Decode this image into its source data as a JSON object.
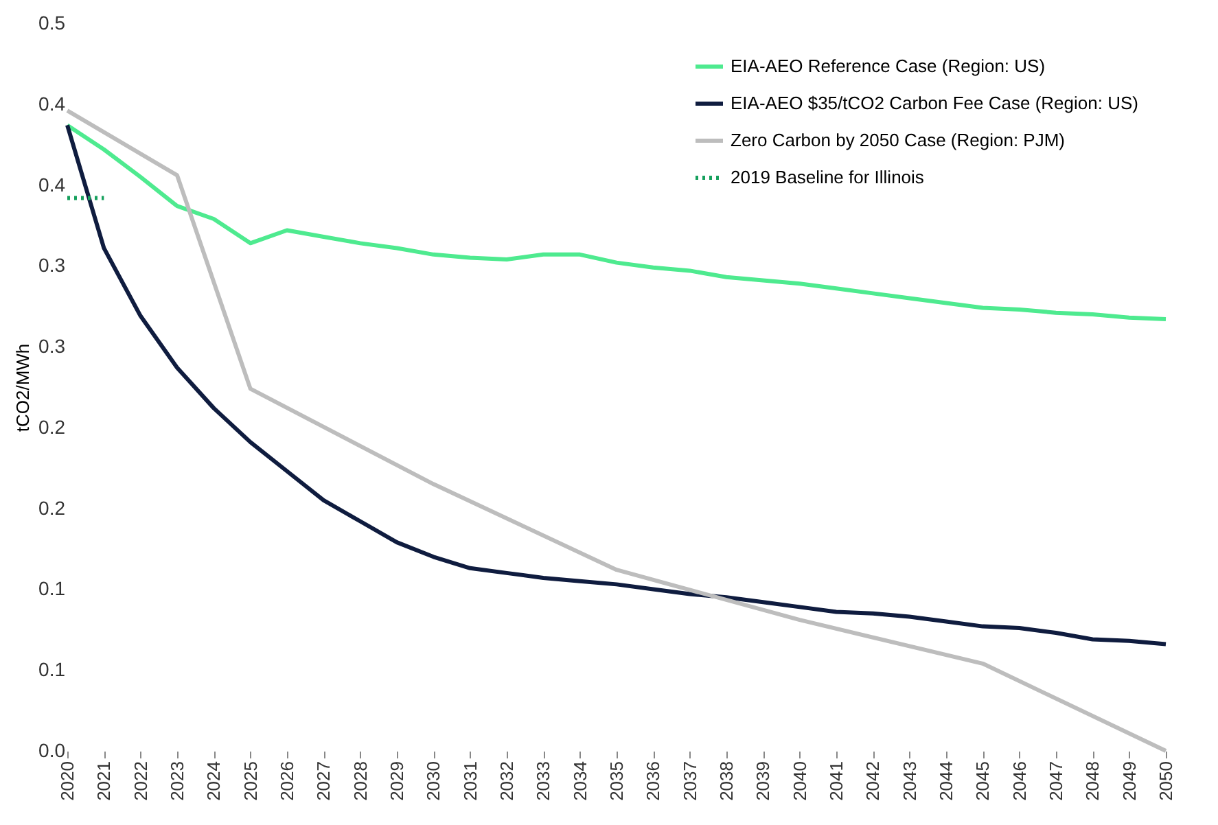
{
  "chart_data": {
    "type": "line",
    "ylabel": "tCO2/MWh",
    "xlim": [
      2020,
      2050
    ],
    "xticks": [
      2020,
      2021,
      2022,
      2023,
      2024,
      2025,
      2026,
      2027,
      2028,
      2029,
      2030,
      2031,
      2032,
      2033,
      2034,
      2035,
      2036,
      2037,
      2038,
      2039,
      2040,
      2041,
      2042,
      2043,
      2044,
      2045,
      2046,
      2047,
      2048,
      2049,
      2050
    ],
    "ylim": [
      0,
      0.45
    ],
    "yticks": [
      {
        "value": 0,
        "label": "0.0"
      },
      {
        "value": 0.05,
        "label": "0.1"
      },
      {
        "value": 0.1,
        "label": "0.1"
      },
      {
        "value": 0.15,
        "label": "0.2"
      },
      {
        "value": 0.2,
        "label": "0.2"
      },
      {
        "value": 0.25,
        "label": "0.3"
      },
      {
        "value": 0.3,
        "label": "0.3"
      },
      {
        "value": 0.35,
        "label": "0.4"
      },
      {
        "value": 0.4,
        "label": "0.4"
      },
      {
        "value": 0.45,
        "label": "0.5"
      }
    ],
    "grid": false,
    "legend": "top right",
    "series": [
      {
        "name": "EIA-AEO Reference Case (Region: US)",
        "color": "#4eea8f",
        "line_style": "solid",
        "x": [
          2020,
          2021,
          2022,
          2023,
          2024,
          2025,
          2026,
          2027,
          2028,
          2029,
          2030,
          2031,
          2032,
          2033,
          2034,
          2035,
          2036,
          2037,
          2038,
          2039,
          2040,
          2041,
          2042,
          2043,
          2044,
          2045,
          2046,
          2047,
          2048,
          2049,
          2050
        ],
        "values": [
          0.387,
          0.372,
          0.355,
          0.337,
          0.329,
          0.314,
          0.322,
          0.318,
          0.314,
          0.311,
          0.307,
          0.305,
          0.304,
          0.307,
          0.307,
          0.302,
          0.299,
          0.297,
          0.293,
          0.291,
          0.289,
          0.286,
          0.283,
          0.28,
          0.277,
          0.274,
          0.273,
          0.271,
          0.27,
          0.268,
          0.267
        ]
      },
      {
        "name": "EIA-AEO $35/tCO2 Carbon Fee Case (Region: US)",
        "color": "#0f1c3f",
        "line_style": "solid",
        "x": [
          2020,
          2021,
          2022,
          2023,
          2024,
          2025,
          2026,
          2027,
          2028,
          2029,
          2030,
          2031,
          2032,
          2033,
          2034,
          2035,
          2036,
          2037,
          2038,
          2039,
          2040,
          2041,
          2042,
          2043,
          2044,
          2045,
          2046,
          2047,
          2048,
          2049,
          2050
        ],
        "values": [
          0.387,
          0.311,
          0.269,
          0.237,
          0.212,
          0.191,
          0.173,
          0.155,
          0.142,
          0.129,
          0.12,
          0.113,
          0.11,
          0.107,
          0.105,
          0.103,
          0.1,
          0.097,
          0.095,
          0.092,
          0.089,
          0.086,
          0.085,
          0.083,
          0.08,
          0.077,
          0.076,
          0.073,
          0.069,
          0.068,
          0.066
        ]
      },
      {
        "name": "Zero Carbon by 2050 Case (Region: PJM)",
        "color": "#bdbdbd",
        "line_style": "solid",
        "x": [
          2020,
          2023,
          2025,
          2030,
          2035,
          2040,
          2045,
          2050
        ],
        "values": [
          0.396,
          0.356,
          0.224,
          0.165,
          0.112,
          0.081,
          0.054,
          0.0
        ]
      },
      {
        "name": "2019 Baseline for Illinois",
        "color": "#16a05d",
        "line_style": "dotted",
        "x": [
          2020,
          2021
        ],
        "values": [
          0.342,
          0.342
        ]
      }
    ]
  }
}
